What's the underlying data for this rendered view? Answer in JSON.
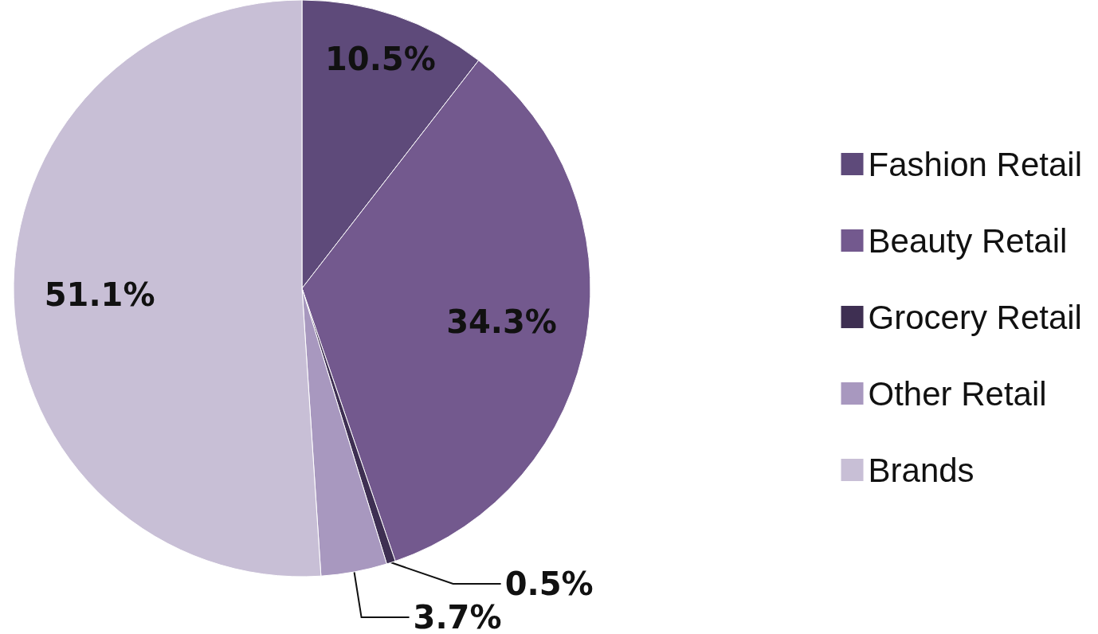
{
  "chart_data": {
    "type": "pie",
    "categories": [
      "Fashion Retail",
      "Beauty Retail",
      "Grocery Retail",
      "Other Retail",
      "Brands"
    ],
    "values": [
      10.5,
      34.3,
      0.5,
      3.7,
      51.1
    ],
    "value_labels": [
      "10.5%",
      "34.3%",
      "0.5%",
      "3.7%",
      "51.1%"
    ],
    "colors": [
      "#5e4a7a",
      "#73598e",
      "#3e2f52",
      "#a898bf",
      "#c8bfd6"
    ],
    "legend": "right"
  }
}
